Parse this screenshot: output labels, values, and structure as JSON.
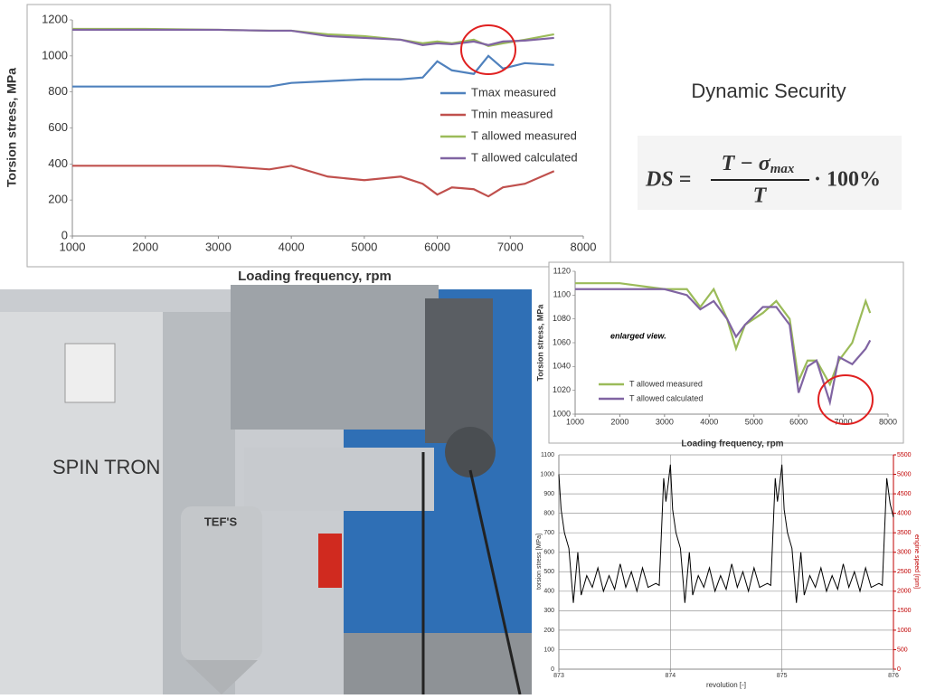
{
  "title": "Dynamic Security",
  "formula": {
    "lhs": "DS =",
    "numerator": "T − σ",
    "subscript": "max",
    "denominator": "T",
    "tail": "· 100%"
  },
  "photo": {
    "label": "SPIN TRON",
    "tank_label": "TEF'S"
  },
  "chart_data": [
    {
      "type": "line",
      "y_label": "Torsion stress, MPa",
      "x_label": "Loading frequency, rpm",
      "x": [
        1000,
        2000,
        3000,
        3700,
        4000,
        4500,
        5000,
        5500,
        5800,
        6000,
        6200,
        6500,
        6700,
        6900,
        7200,
        7600
      ],
      "xlim": [
        1000,
        8000
      ],
      "xticks": [
        1000,
        2000,
        3000,
        4000,
        5000,
        6000,
        7000,
        8000
      ],
      "ylim": [
        0,
        1200
      ],
      "yticks": [
        0,
        200,
        400,
        600,
        800,
        1000,
        1200
      ],
      "grid": false,
      "series": [
        {
          "name": "Tmax measured",
          "color": "#4f81bd",
          "values": [
            830,
            830,
            830,
            830,
            850,
            860,
            870,
            870,
            880,
            970,
            920,
            900,
            1000,
            930,
            960,
            950
          ]
        },
        {
          "name": "Tmin measured",
          "color": "#c0504d",
          "values": [
            390,
            390,
            390,
            370,
            390,
            330,
            310,
            330,
            290,
            230,
            270,
            260,
            220,
            270,
            290,
            360
          ]
        },
        {
          "name": "T allowed measured",
          "color": "#9bbb59",
          "values": [
            1150,
            1150,
            1145,
            1140,
            1140,
            1120,
            1110,
            1090,
            1070,
            1080,
            1070,
            1090,
            1055,
            1070,
            1090,
            1120
          ]
        },
        {
          "name": "T allowed calculated",
          "color": "#8064a2",
          "values": [
            1145,
            1145,
            1145,
            1140,
            1140,
            1110,
            1100,
            1090,
            1060,
            1070,
            1065,
            1080,
            1060,
            1080,
            1085,
            1100
          ]
        }
      ]
    },
    {
      "type": "line",
      "y_label": "Torsion stress, MPa",
      "x_label": "Loading frequency, rpm",
      "annotation": "enlarged view.",
      "x": [
        1000,
        2000,
        3000,
        3500,
        3800,
        4100,
        4400,
        4600,
        4800,
        5200,
        5500,
        5800,
        6000,
        6200,
        6400,
        6700,
        6900,
        7200,
        7500,
        7600
      ],
      "xlim": [
        1000,
        8000
      ],
      "xticks": [
        1000,
        2000,
        3000,
        4000,
        5000,
        6000,
        7000,
        8000
      ],
      "ylim": [
        1000,
        1120
      ],
      "yticks": [
        1000,
        1020,
        1040,
        1060,
        1080,
        1100,
        1120
      ],
      "grid": false,
      "series": [
        {
          "name": "T allowed measured",
          "color": "#9bbb59",
          "values": [
            1110,
            1110,
            1105,
            1105,
            1090,
            1105,
            1080,
            1055,
            1075,
            1085,
            1095,
            1080,
            1028,
            1045,
            1045,
            1025,
            1045,
            1060,
            1095,
            1085
          ]
        },
        {
          "name": "T allowed calculated",
          "color": "#8064a2",
          "values": [
            1105,
            1105,
            1105,
            1100,
            1088,
            1095,
            1080,
            1065,
            1075,
            1090,
            1090,
            1075,
            1018,
            1040,
            1045,
            1010,
            1048,
            1042,
            1055,
            1062
          ]
        }
      ]
    },
    {
      "type": "line",
      "y_label": "torsion stress [MPa]",
      "y2_label": "engine speed [rpm]",
      "x_label": "revolution [-]",
      "x": [
        873.0,
        873.02,
        873.05,
        873.09,
        873.13,
        873.17,
        873.2,
        873.25,
        873.3,
        873.35,
        873.4,
        873.45,
        873.5,
        873.55,
        873.6,
        873.65,
        873.7,
        873.75,
        873.8,
        873.87,
        873.9,
        873.94,
        873.96,
        873.98,
        874.0,
        874.02,
        874.05,
        874.09,
        874.13,
        874.17,
        874.2,
        874.25,
        874.3,
        874.35,
        874.4,
        874.45,
        874.5,
        874.55,
        874.6,
        874.65,
        874.7,
        874.75,
        874.8,
        874.87,
        874.9,
        874.94,
        874.96,
        874.98,
        875.0,
        875.02,
        875.05,
        875.09,
        875.13,
        875.17,
        875.2,
        875.25,
        875.3,
        875.35,
        875.4,
        875.45,
        875.5,
        875.55,
        875.6,
        875.65,
        875.7,
        875.75,
        875.8,
        875.87,
        875.9,
        875.94,
        875.97,
        876.0
      ],
      "xlim": [
        873,
        876
      ],
      "xticks": [
        873,
        874,
        875,
        876
      ],
      "ylim": [
        0,
        1100
      ],
      "yticks": [
        0,
        100,
        200,
        300,
        400,
        500,
        600,
        700,
        800,
        900,
        1000,
        1100
      ],
      "y2lim": [
        0,
        5500
      ],
      "y2ticks": [
        0,
        500,
        1000,
        1500,
        2000,
        2500,
        3000,
        3500,
        4000,
        4500,
        5000,
        5500
      ],
      "y2color": "#c00000",
      "grid": true,
      "series": [
        {
          "color": "#000000",
          "values": [
            1000,
            820,
            700,
            620,
            340,
            600,
            380,
            480,
            420,
            520,
            400,
            480,
            410,
            540,
            420,
            500,
            400,
            520,
            420,
            440,
            430,
            980,
            860,
            950,
            1050,
            820,
            700,
            620,
            340,
            600,
            380,
            480,
            420,
            520,
            400,
            480,
            410,
            540,
            420,
            500,
            400,
            520,
            420,
            440,
            430,
            980,
            860,
            950,
            1050,
            820,
            700,
            620,
            340,
            600,
            380,
            480,
            420,
            520,
            400,
            480,
            410,
            540,
            420,
            500,
            400,
            520,
            420,
            440,
            430,
            980,
            850,
            780
          ]
        }
      ]
    }
  ]
}
